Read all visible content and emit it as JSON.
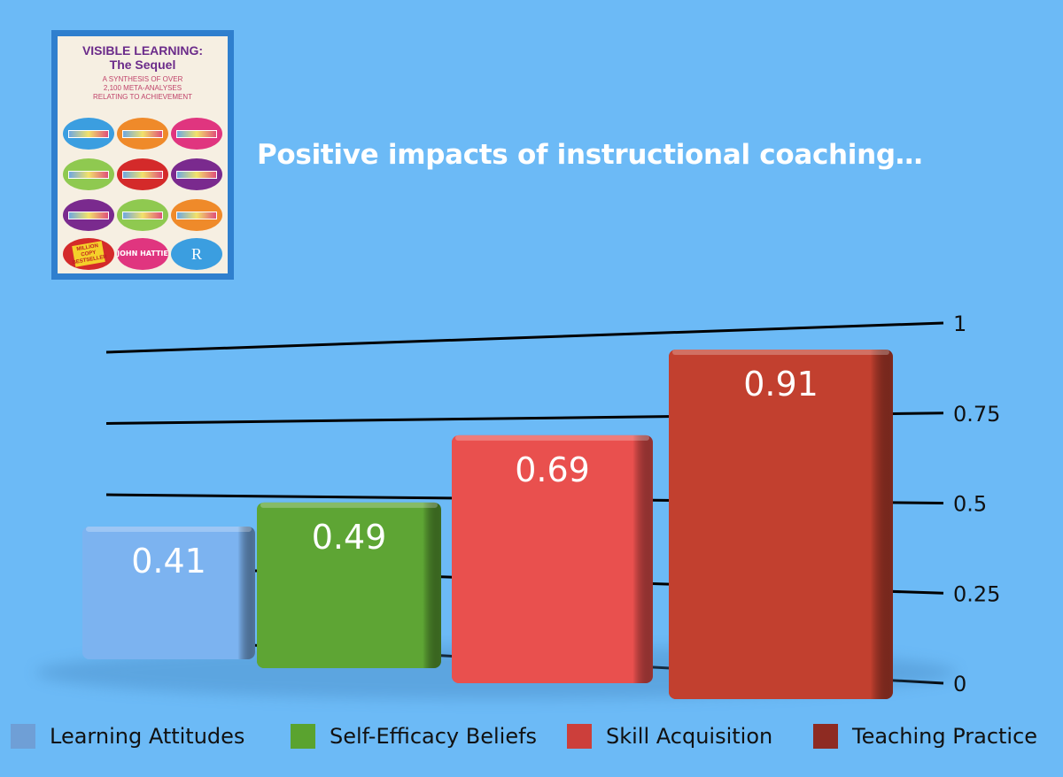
{
  "book_cover": {
    "title_line1": "VISIBLE LEARNING:",
    "title_line2": "The Sequel",
    "subtitle": [
      "A SYNTHESIS OF OVER",
      "2,100 META-ANALYSES",
      "RELATING TO ACHIEVEMENT"
    ],
    "badge": "MILLION COPY BESTSELLER",
    "author": "JOHN HATTIE",
    "publisher_logo": "R"
  },
  "chart_data": {
    "type": "bar",
    "title": "Positive impacts of instructional coaching…",
    "categories": [
      "Learning Attitudes",
      "Self-Efficacy Beliefs",
      "Skill Acquisition",
      "Teaching Practice"
    ],
    "values": [
      0.41,
      0.49,
      0.69,
      0.91
    ],
    "data_labels": [
      "0.41",
      "0.49",
      "0.69",
      "0.91"
    ],
    "colors": [
      "#7cb3f0",
      "#5ea534",
      "#e9504e",
      "#c2402f"
    ],
    "legend_colors": [
      "#6f9fd6",
      "#5aa32f",
      "#cc3f3b",
      "#8e2b22"
    ],
    "ylim": [
      0,
      1
    ],
    "y_ticks": [
      "0",
      "0.25",
      "0.5",
      "0.75",
      "1"
    ],
    "y_tick_values": [
      0,
      0.25,
      0.5,
      0.75,
      1
    ],
    "grid": true,
    "legend_position": "bottom",
    "style": "3d"
  }
}
